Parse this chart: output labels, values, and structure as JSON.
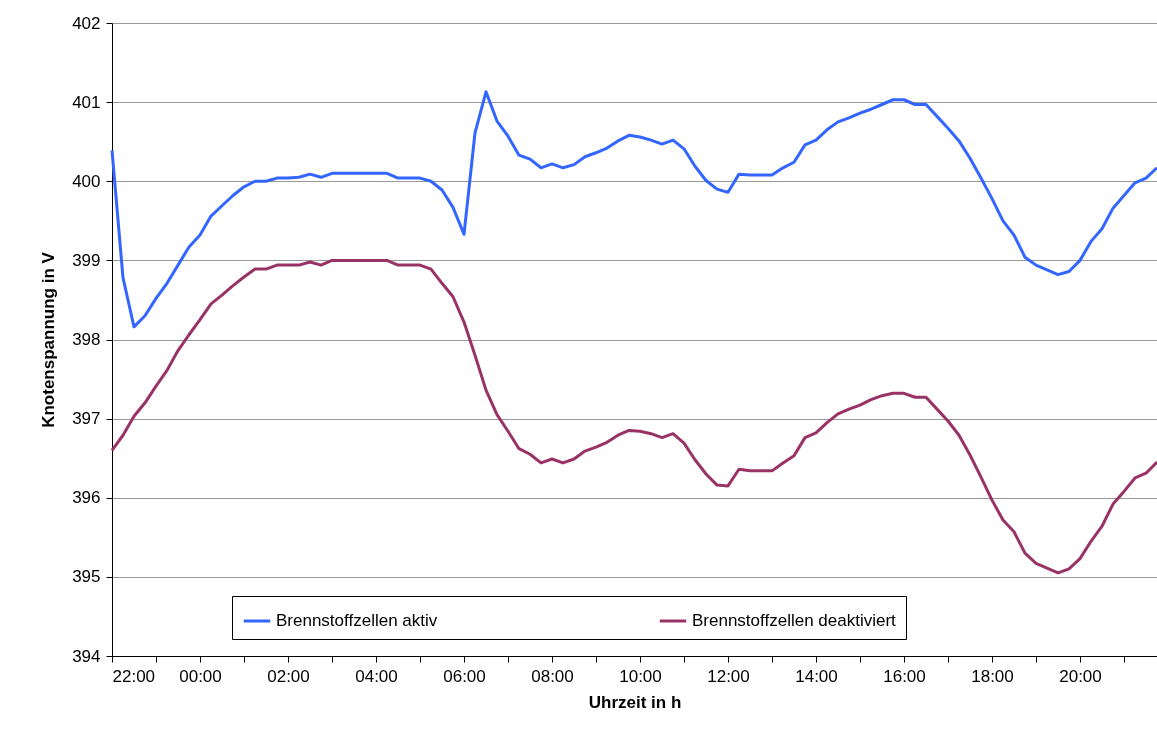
{
  "chart_data": {
    "type": "line",
    "xlabel": "Uhrzeit in h",
    "ylabel": "Knotenspannung in V",
    "x": [
      "2000-01-01T22:00",
      "2000-01-01T22:15",
      "2000-01-01T22:30",
      "2000-01-01T22:45",
      "2000-01-01T23:00",
      "2000-01-01T23:15",
      "2000-01-01T23:30",
      "2000-01-01T23:45",
      "2000-01-02T00:00",
      "2000-01-02T00:15",
      "2000-01-02T00:30",
      "2000-01-02T00:45",
      "2000-01-02T01:00",
      "2000-01-02T01:15",
      "2000-01-02T01:30",
      "2000-01-02T01:45",
      "2000-01-02T02:00",
      "2000-01-02T02:15",
      "2000-01-02T02:30",
      "2000-01-02T02:45",
      "2000-01-02T03:00",
      "2000-01-02T03:15",
      "2000-01-02T03:30",
      "2000-01-02T03:45",
      "2000-01-02T04:00",
      "2000-01-02T04:15",
      "2000-01-02T04:30",
      "2000-01-02T04:45",
      "2000-01-02T05:00",
      "2000-01-02T05:15",
      "2000-01-02T05:30",
      "2000-01-02T05:45",
      "2000-01-02T06:00",
      "2000-01-02T06:15",
      "2000-01-02T06:30",
      "2000-01-02T06:45",
      "2000-01-02T07:00",
      "2000-01-02T07:15",
      "2000-01-02T07:30",
      "2000-01-02T07:45",
      "2000-01-02T08:00",
      "2000-01-02T08:15",
      "2000-01-02T08:30",
      "2000-01-02T08:45",
      "2000-01-02T09:00",
      "2000-01-02T09:15",
      "2000-01-02T09:30",
      "2000-01-02T09:45",
      "2000-01-02T10:00",
      "2000-01-02T10:15",
      "2000-01-02T10:30",
      "2000-01-02T10:45",
      "2000-01-02T11:00",
      "2000-01-02T11:15",
      "2000-01-02T11:30",
      "2000-01-02T11:45",
      "2000-01-02T12:00",
      "2000-01-02T12:15",
      "2000-01-02T12:30",
      "2000-01-02T12:45",
      "2000-01-02T13:00",
      "2000-01-02T13:15",
      "2000-01-02T13:30",
      "2000-01-02T13:45",
      "2000-01-02T14:00",
      "2000-01-02T14:15",
      "2000-01-02T14:30",
      "2000-01-02T14:45",
      "2000-01-02T15:00",
      "2000-01-02T15:15",
      "2000-01-02T15:30",
      "2000-01-02T15:45",
      "2000-01-02T16:00",
      "2000-01-02T16:15",
      "2000-01-02T16:30",
      "2000-01-02T16:45",
      "2000-01-02T17:00",
      "2000-01-02T17:15",
      "2000-01-02T17:30",
      "2000-01-02T17:45",
      "2000-01-02T18:00",
      "2000-01-02T18:15",
      "2000-01-02T18:30",
      "2000-01-02T18:45",
      "2000-01-02T19:00",
      "2000-01-02T19:15",
      "2000-01-02T19:30",
      "2000-01-02T19:45",
      "2000-01-02T20:00",
      "2000-01-02T20:15",
      "2000-01-02T20:30",
      "2000-01-02T20:45",
      "2000-01-02T21:00",
      "2000-01-02T21:15",
      "2000-01-02T21:30",
      "2000-01-02T21:45"
    ],
    "series": [
      {
        "name": "Brennstoffzellen aktiv",
        "color": "#3366ff",
        "values": [
          400.39,
          398.78,
          398.16,
          398.3,
          398.52,
          398.71,
          398.94,
          399.17,
          399.32,
          399.56,
          399.69,
          399.82,
          399.93,
          400,
          400,
          400.04,
          400.04,
          400.05,
          400.09,
          400.05,
          400.1,
          400.1,
          400.1,
          400.1,
          400.1,
          400.1,
          400.04,
          400.04,
          400.04,
          400,
          399.89,
          399.67,
          399.33,
          400.61,
          401.13,
          400.76,
          400.57,
          400.33,
          400.28,
          400.17,
          400.22,
          400.17,
          400.21,
          400.31,
          400.36,
          400.42,
          400.51,
          400.58,
          400.56,
          400.52,
          400.47,
          400.52,
          400.41,
          400.19,
          400.01,
          399.9,
          399.86,
          400.09,
          400.08,
          400.08,
          400.08,
          400.17,
          400.24,
          400.46,
          400.52,
          400.65,
          400.75,
          400.8,
          400.86,
          400.91,
          400.97,
          401.03,
          401.03,
          400.97,
          400.97,
          400.82,
          400.67,
          400.51,
          400.29,
          400.04,
          399.78,
          399.5,
          399.32,
          399.04,
          398.94,
          398.88,
          398.82,
          398.86,
          399,
          399.24,
          399.4,
          399.66,
          399.82,
          399.98,
          400.04,
          400.17
        ]
      },
      {
        "name": "Brennstoffzellen deaktiviert",
        "color": "#993366",
        "values": [
          396.6,
          396.79,
          397.03,
          397.2,
          397.41,
          397.61,
          397.86,
          398.06,
          398.25,
          398.45,
          398.56,
          398.68,
          398.79,
          398.89,
          398.89,
          398.94,
          398.94,
          398.94,
          398.98,
          398.94,
          399,
          399,
          399,
          399,
          399,
          399,
          398.94,
          398.94,
          398.94,
          398.89,
          398.71,
          398.54,
          398.22,
          397.8,
          397.36,
          397.05,
          396.84,
          396.62,
          396.55,
          396.44,
          396.49,
          396.44,
          396.49,
          396.59,
          396.64,
          396.7,
          396.79,
          396.85,
          396.84,
          396.81,
          396.76,
          396.81,
          396.69,
          396.48,
          396.3,
          396.16,
          396.15,
          396.36,
          396.34,
          396.34,
          396.34,
          396.44,
          396.53,
          396.76,
          396.82,
          396.95,
          397.06,
          397.12,
          397.17,
          397.24,
          397.29,
          397.32,
          397.32,
          397.27,
          397.27,
          397.12,
          396.97,
          396.79,
          396.54,
          396.26,
          395.97,
          395.72,
          395.57,
          395.3,
          395.17,
          395.11,
          395.05,
          395.1,
          395.23,
          395.45,
          395.64,
          395.92,
          396.08,
          396.25,
          396.31,
          396.45
        ]
      }
    ],
    "xlim": [
      "2000-01-01T22:00",
      "2000-01-02T21:45"
    ],
    "xticks": [
      {
        "value": "2000-01-01T22:00",
        "label": "22:00"
      },
      {
        "value": "2000-01-01T23:00",
        "label": null
      },
      {
        "value": "2000-01-02T00:00",
        "label": "00:00"
      },
      {
        "value": "2000-01-02T01:00",
        "label": null
      },
      {
        "value": "2000-01-02T02:00",
        "label": "02:00"
      },
      {
        "value": "2000-01-02T03:00",
        "label": null
      },
      {
        "value": "2000-01-02T04:00",
        "label": "04:00"
      },
      {
        "value": "2000-01-02T05:00",
        "label": null
      },
      {
        "value": "2000-01-02T06:00",
        "label": "06:00"
      },
      {
        "value": "2000-01-02T07:00",
        "label": null
      },
      {
        "value": "2000-01-02T08:00",
        "label": "08:00"
      },
      {
        "value": "2000-01-02T09:00",
        "label": null
      },
      {
        "value": "2000-01-02T10:00",
        "label": "10:00"
      },
      {
        "value": "2000-01-02T11:00",
        "label": null
      },
      {
        "value": "2000-01-02T12:00",
        "label": "12:00"
      },
      {
        "value": "2000-01-02T13:00",
        "label": null
      },
      {
        "value": "2000-01-02T14:00",
        "label": "14:00"
      },
      {
        "value": "2000-01-02T15:00",
        "label": null
      },
      {
        "value": "2000-01-02T16:00",
        "label": "16:00"
      },
      {
        "value": "2000-01-02T17:00",
        "label": null
      },
      {
        "value": "2000-01-02T18:00",
        "label": "18:00"
      },
      {
        "value": "2000-01-02T19:00",
        "label": null
      },
      {
        "value": "2000-01-02T20:00",
        "label": "20:00"
      },
      {
        "value": "2000-01-02T21:00",
        "label": null
      }
    ],
    "ylim": [
      394,
      402
    ],
    "yticks": [
      394,
      395,
      396,
      397,
      398,
      399,
      400,
      401,
      402
    ],
    "grid": "y",
    "legend": "bottom"
  }
}
